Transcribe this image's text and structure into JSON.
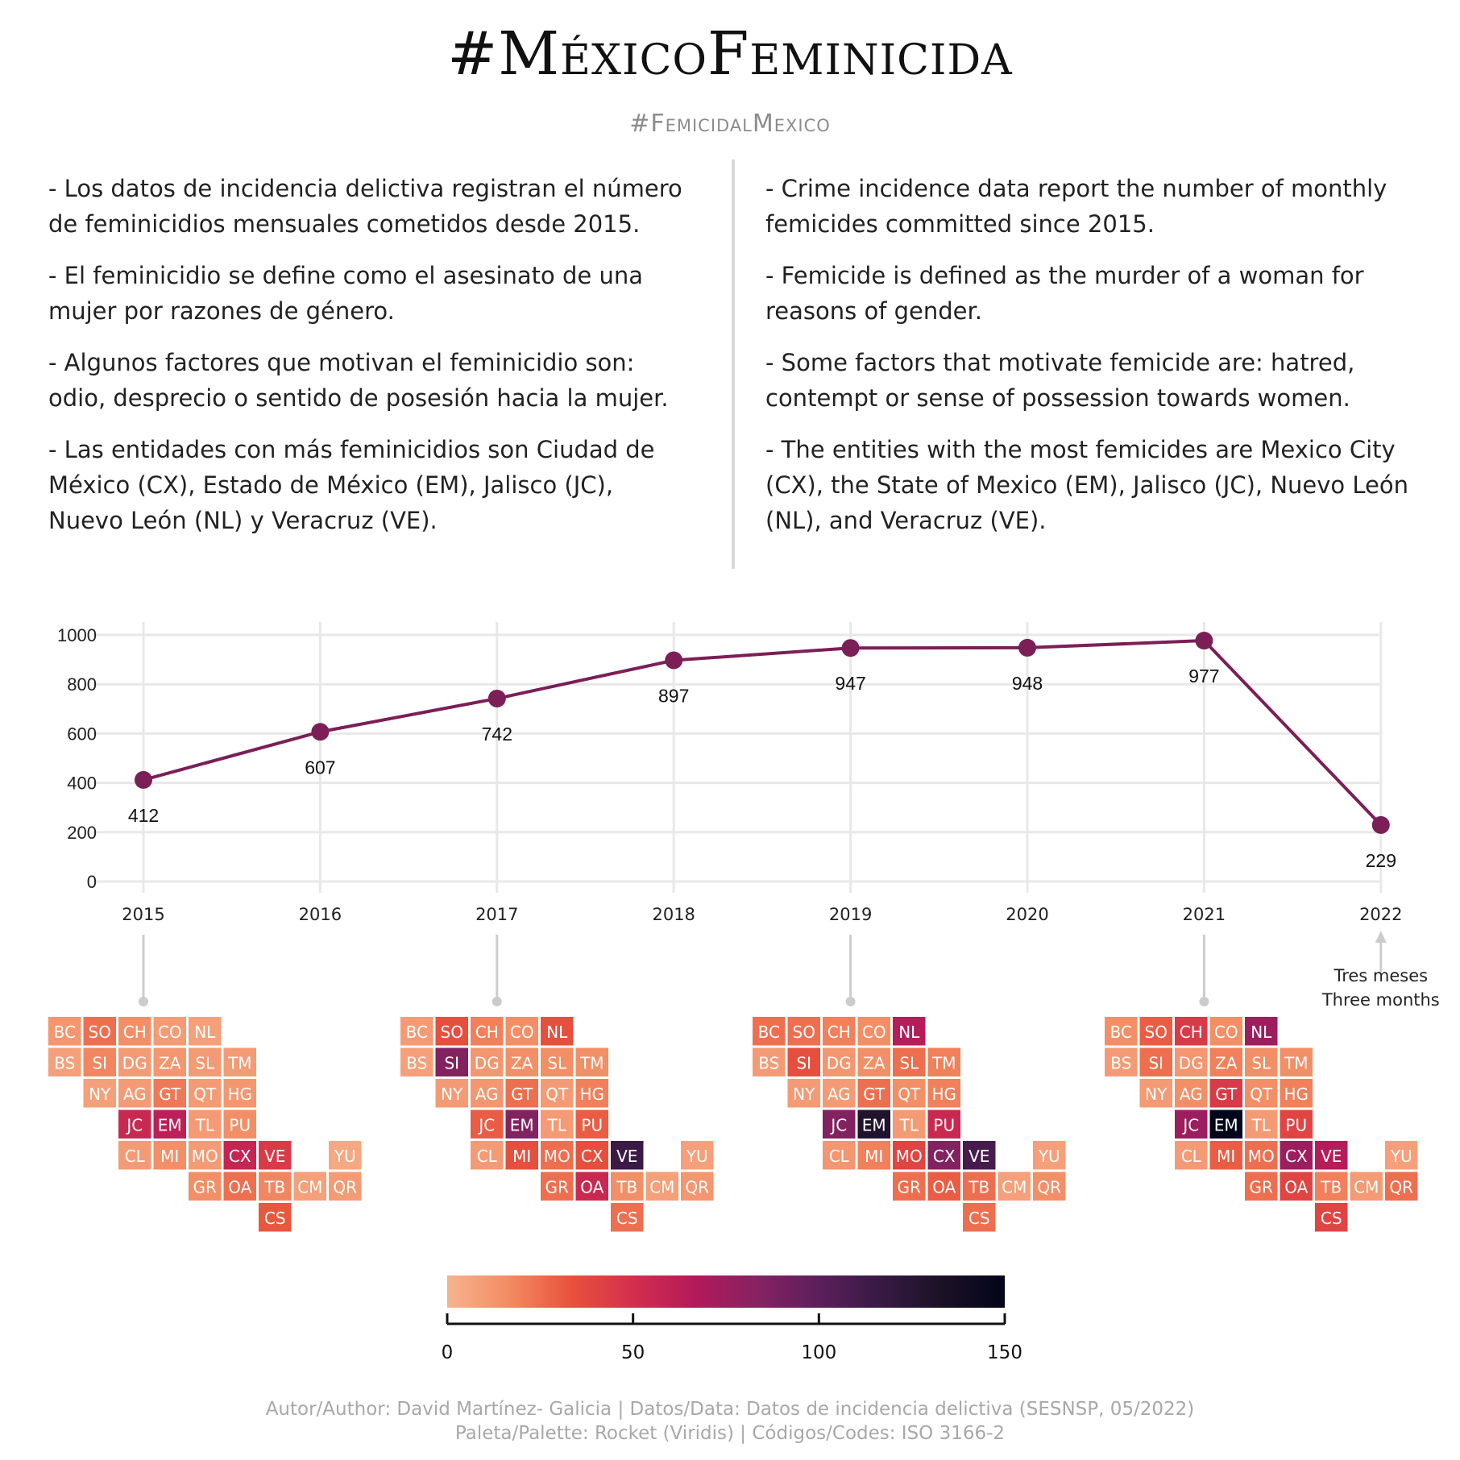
{
  "header": {
    "title": "#MéxicoFeminicida",
    "subtitle": "#FemicidalMexico"
  },
  "text_es": [
    "- Los datos de incidencia delictiva registran el número de feminicidios mensuales cometidos desde 2015.",
    "- El feminicidio se define como el asesinato de una mujer por razones de género.",
    "- Algunos factores que motivan el feminicidio son: odio, desprecio o sentido de posesión hacia la mujer.",
    "- Las entidades con más feminicidios son Ciudad de México (CX), Estado de México (EM), Jalisco (JC), Nuevo León (NL) y Veracruz (VE)."
  ],
  "text_en": [
    "- Crime incidence data report the number of monthly femicides committed since 2015.",
    "- Femicide is defined as the murder of a woman for reasons of gender.",
    "- Some factors that motivate femicide are: hatred, contempt or sense of possession towards women.",
    "- The entities with the most femicides are Mexico City (CX), the State of Mexico (EM), Jalisco (JC), Nuevo León (NL), and Veracruz (VE)."
  ],
  "chart_data": [
    {
      "type": "line",
      "x": [
        "2015",
        "2016",
        "2017",
        "2018",
        "2019",
        "2020",
        "2021",
        "2022"
      ],
      "values": [
        412,
        607,
        742,
        897,
        947,
        948,
        977,
        229
      ],
      "data_labels": [
        "412",
        "607",
        "742",
        "897",
        "947",
        "948",
        "977",
        "229"
      ],
      "y_ticks": [
        "0",
        "200",
        "400",
        "600",
        "800",
        "1000"
      ],
      "ylim": [
        0,
        1000
      ],
      "grid": true,
      "color": "#7b1f56",
      "annotation": [
        "Tres meses",
        "Three months"
      ]
    },
    {
      "type": "heatmap",
      "layout": "tile grid map",
      "panels": [
        {
          "year": "2015",
          "values": {
            "BC": 12,
            "SO": 25,
            "CH": 15,
            "CO": 10,
            "NL": 8,
            "BS": 8,
            "SI": 18,
            "DG": 10,
            "ZA": 12,
            "SL": 10,
            "TM": 10,
            "NY": 8,
            "AG": 10,
            "GT": 22,
            "QT": 10,
            "HG": 12,
            "JC": 55,
            "EM": 62,
            "TL": 10,
            "PU": 15,
            "CL": 10,
            "MI": 15,
            "MO": 10,
            "CX": 58,
            "VE": 45,
            "YU": 5,
            "GR": 15,
            "OA": 25,
            "TB": 18,
            "CM": 8,
            "QR": 10,
            "CS": 32
          }
        },
        {
          "year": "2017",
          "values": {
            "BC": 10,
            "SO": 35,
            "CH": 20,
            "CO": 15,
            "NL": 35,
            "BS": 8,
            "SI": 85,
            "DG": 12,
            "ZA": 15,
            "SL": 15,
            "TM": 15,
            "NY": 10,
            "AG": 12,
            "GT": 25,
            "QT": 10,
            "HG": 20,
            "JC": 30,
            "EM": 85,
            "TL": 10,
            "PU": 30,
            "CL": 10,
            "MI": 35,
            "MO": 25,
            "CX": 35,
            "VE": 115,
            "YU": 8,
            "GR": 25,
            "OA": 55,
            "TB": 15,
            "CM": 8,
            "QR": 12,
            "CS": 25
          }
        },
        {
          "year": "2019",
          "values": {
            "BC": 25,
            "SO": 25,
            "CH": 20,
            "CO": 15,
            "NL": 65,
            "BS": 10,
            "SI": 35,
            "DG": 12,
            "ZA": 15,
            "SL": 25,
            "TM": 20,
            "NY": 10,
            "AG": 10,
            "GT": 25,
            "QT": 15,
            "HG": 20,
            "JC": 85,
            "EM": 130,
            "TL": 10,
            "PU": 55,
            "CL": 12,
            "MI": 20,
            "MO": 40,
            "CX": 85,
            "VE": 110,
            "YU": 8,
            "GR": 25,
            "OA": 30,
            "TB": 25,
            "CM": 8,
            "QR": 15,
            "CS": 25
          }
        },
        {
          "year": "2021",
          "values": {
            "BC": 15,
            "SO": 30,
            "CH": 45,
            "CO": 15,
            "NL": 75,
            "BS": 10,
            "SI": 25,
            "DG": 12,
            "ZA": 20,
            "SL": 15,
            "TM": 15,
            "NY": 10,
            "AG": 15,
            "GT": 45,
            "QT": 15,
            "HG": 20,
            "JC": 75,
            "EM": 150,
            "TL": 10,
            "PU": 40,
            "CL": 10,
            "MI": 30,
            "MO": 25,
            "CX": 75,
            "VE": 65,
            "YU": 8,
            "GR": 25,
            "OA": 40,
            "TB": 20,
            "CM": 10,
            "QR": 25,
            "CS": 40
          }
        }
      ],
      "scale": {
        "min": 0,
        "max": 150,
        "ticks": [
          "0",
          "50",
          "100",
          "150"
        ],
        "palette": "Rocket"
      }
    }
  ],
  "credits": {
    "line1": "Autor/Author: David Martínez- Galicia | Datos/Data: Datos de incidencia delictiva (SESNSP, 05/2022)",
    "line2": "Paleta/Palette: Rocket (Viridis) | Códigos/Codes: ISO 3166-2"
  },
  "colors": {
    "line": "#7b1f56",
    "grid": "#e8e8e8",
    "connector": "#cccccc",
    "rocket": [
      "#f6b48f",
      "#f38b63",
      "#e8523c",
      "#d32f4d",
      "#b31a5a",
      "#872262",
      "#5c1f5c",
      "#371a43",
      "#1b1126",
      "#03051a"
    ]
  }
}
